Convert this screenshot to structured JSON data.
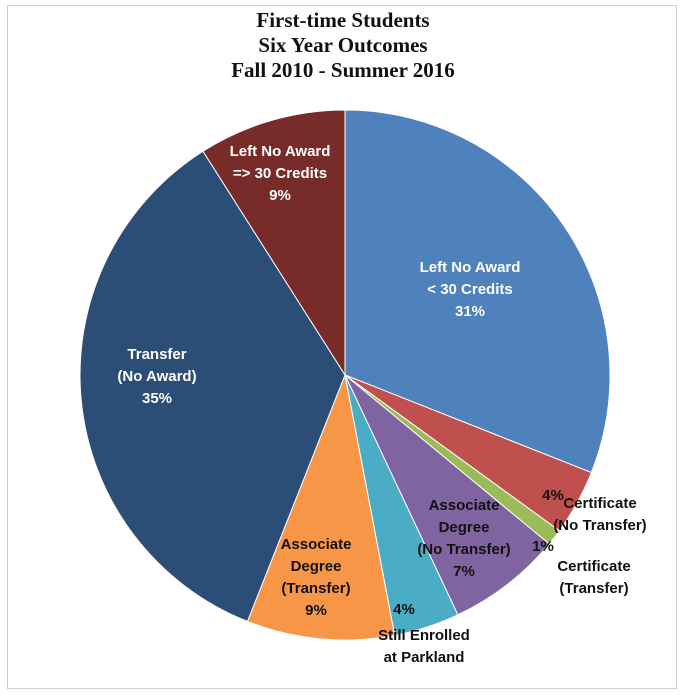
{
  "chart_data": {
    "type": "pie",
    "title_lines": [
      "First-time Students",
      "Six Year Outcomes",
      "Fall 2010 - Summer 2016"
    ],
    "start_angle_deg": 0,
    "direction": "clockwise",
    "slices": [
      {
        "label": [
          "Left No Award",
          "< 30 Credits"
        ],
        "value": 31,
        "display": "31%",
        "color": "#4F81BD"
      },
      {
        "label": [
          "Certificate",
          "(No Transfer)"
        ],
        "value": 4,
        "display": "4%",
        "color": "#C0504D"
      },
      {
        "label": [
          "Certificate",
          "(Transfer)"
        ],
        "value": 1,
        "display": "1%",
        "color": "#9BBB59"
      },
      {
        "label": [
          "Associate",
          "Degree",
          "(No Transfer)"
        ],
        "value": 7,
        "display": "7%",
        "color": "#8064A2"
      },
      {
        "label": [
          "Still Enrolled",
          "at Parkland"
        ],
        "value": 4,
        "display": "4%",
        "color": "#4BACC6"
      },
      {
        "label": [
          "Associate",
          "Degree",
          "(Transfer)"
        ],
        "value": 9,
        "display": "9%",
        "color": "#F79646"
      },
      {
        "label": [
          "Transfer",
          "(No Award)"
        ],
        "value": 35,
        "display": "35%",
        "color": "#2C4D75"
      },
      {
        "label": [
          "Left No Award",
          "=> 30 Credits"
        ],
        "value": 9,
        "display": "9%",
        "color": "#772C2A"
      }
    ]
  }
}
